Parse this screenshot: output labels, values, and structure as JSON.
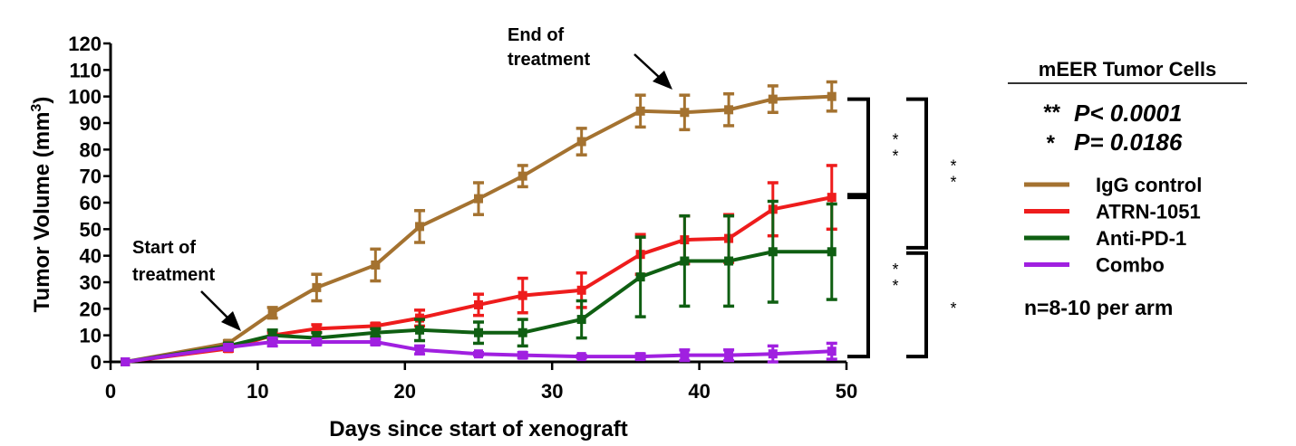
{
  "chart_data": {
    "type": "line",
    "xlabel": "Days since start of xenograft",
    "ylabel": "Tumor Volume (mm",
    "ylabel_sup": "3",
    "ylabel_close": ")",
    "xlim": [
      0,
      50
    ],
    "ylim": [
      0,
      120
    ],
    "xticks": [
      0,
      10,
      20,
      30,
      40,
      50
    ],
    "yticks": [
      0,
      10,
      20,
      30,
      40,
      50,
      60,
      70,
      80,
      90,
      100,
      110,
      120
    ],
    "grid": false,
    "legend_position": "right",
    "x": [
      1,
      8,
      11,
      14,
      18,
      21,
      25,
      28,
      32,
      36,
      39,
      42,
      45,
      49
    ],
    "series": [
      {
        "name": "IgG control",
        "color": "#a47230",
        "values": [
          0,
          7,
          18.5,
          28,
          36.5,
          51,
          61.5,
          70,
          83,
          94.5,
          94,
          95,
          99,
          100
        ],
        "errors": [
          0,
          1,
          2,
          5,
          6,
          6,
          6,
          4,
          5,
          6,
          6.5,
          6,
          5,
          5.5
        ]
      },
      {
        "name": "ATRN-1051",
        "color": "#ee1c1c",
        "values": [
          0,
          5,
          10,
          12.5,
          13.5,
          16.5,
          21.5,
          25,
          27,
          40.5,
          46,
          46.5,
          57.5,
          62
        ],
        "errors": [
          0,
          1,
          1,
          1.5,
          1,
          3,
          4,
          6.5,
          6.5,
          7.5,
          9,
          9,
          10,
          12
        ]
      },
      {
        "name": "Anti-PD-1",
        "color": "#0f5f12",
        "values": [
          0,
          6,
          10,
          9,
          11,
          12,
          11,
          11,
          16,
          32,
          38,
          38,
          41.5,
          41.5
        ],
        "errors": [
          0,
          1,
          2,
          2,
          1.5,
          4,
          4,
          5,
          7,
          15,
          17,
          17,
          19,
          18
        ]
      },
      {
        "name": "Combo",
        "color": "#a020e0",
        "values": [
          0,
          5.5,
          7.5,
          7.5,
          7.5,
          4.5,
          3,
          2.5,
          2,
          2,
          2.5,
          2.5,
          3,
          4
        ],
        "errors": [
          0,
          1,
          1.5,
          1,
          1,
          1.5,
          0.5,
          1,
          0.5,
          1,
          2,
          2,
          3,
          3
        ]
      }
    ],
    "annotations": {
      "start": [
        "Start of",
        "treatment"
      ],
      "end": [
        "End of",
        "treatment"
      ]
    },
    "significance_brackets": [
      {
        "range": [
          99,
          63
        ],
        "mark": "**"
      },
      {
        "range": [
          62,
          2
        ],
        "mark": "**"
      },
      {
        "range": [
          99,
          43
        ],
        "mark": "**"
      },
      {
        "range": [
          41,
          2
        ],
        "mark": "*"
      }
    ],
    "legend_title": "mEER Tumor Cells",
    "pvalues": [
      {
        "mark": "**",
        "text": "P< 0.0001"
      },
      {
        "mark": "*",
        "text": "P= 0.0186"
      }
    ],
    "note": "n=8-10 per arm"
  }
}
